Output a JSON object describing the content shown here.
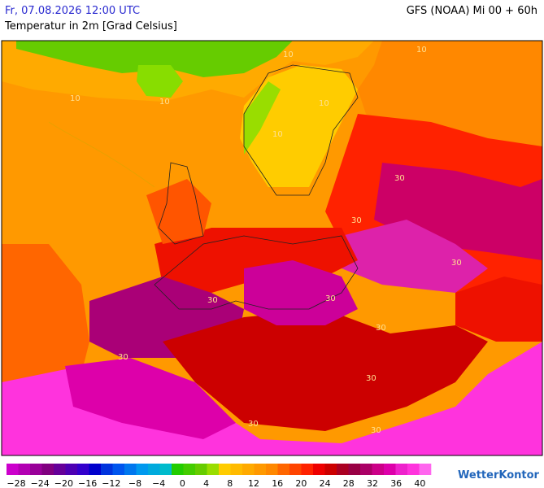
{
  "header": {
    "datetime": "Fr, 07.08.2026 12:00 UTC",
    "parameter": "Temperatur in 2m [Grad Celsius]",
    "model": "GFS (NOAA) Mi 00 + 60h"
  },
  "map": {
    "contour_labels": [
      "10",
      "10",
      "10",
      "10",
      "10",
      "10",
      "30",
      "30",
      "30",
      "30",
      "30",
      "30",
      "30",
      "30",
      "30",
      "30"
    ]
  },
  "legend": {
    "labels": [
      "−28",
      "−24",
      "−20",
      "−16",
      "−12",
      "−8",
      "−4",
      "0",
      "4",
      "8",
      "12",
      "16",
      "20",
      "24",
      "28",
      "32",
      "36",
      "40"
    ]
  },
  "brand": "WetterKontor"
}
